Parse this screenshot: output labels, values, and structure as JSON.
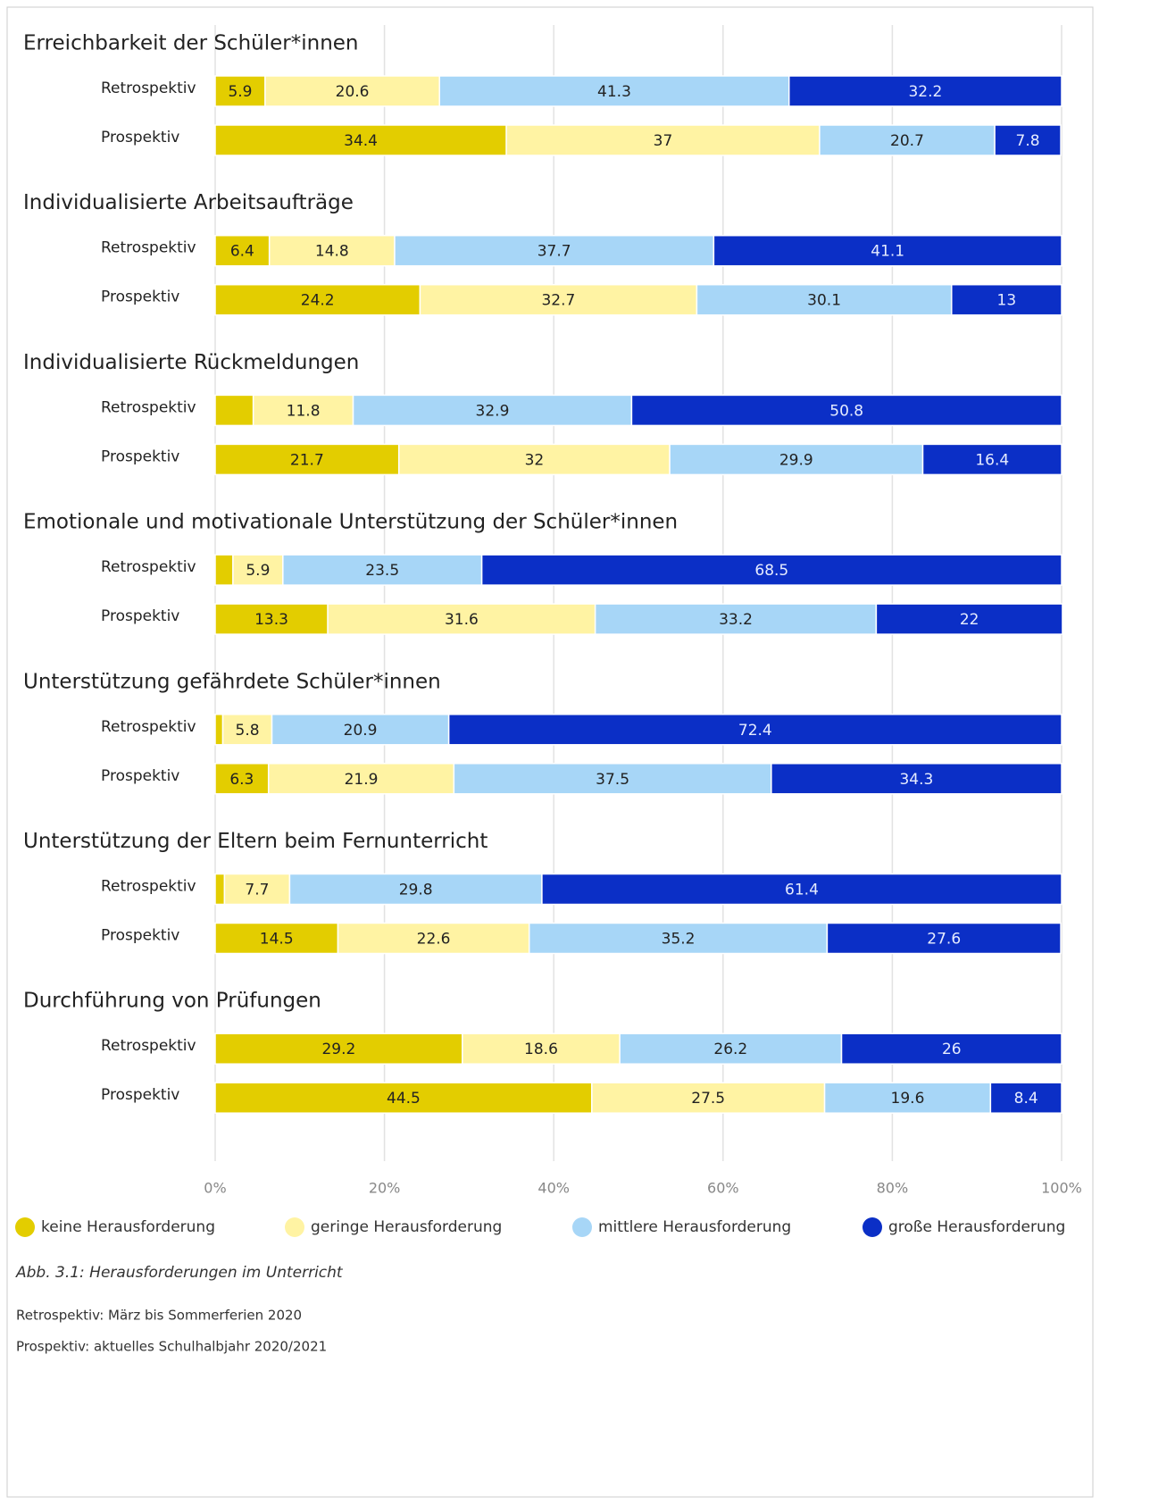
{
  "chart_data": {
    "type": "bar",
    "orientation": "horizontal",
    "stacked": true,
    "groups": [
      "Erreichbarkeit der Schüler*innen",
      "Individualisierte Arbeitsaufträge",
      "Individualisierte Rückmeldungen",
      "Emotionale und motivationale Unterstützung der Schüler*innen",
      "Unterstützung gefährdete Schüler*innen",
      "Unterstützung der Eltern beim Fernunterricht",
      "Durchführung von Prüfungen"
    ],
    "categories": [
      "Retrospektiv",
      "Prospektiv",
      "Retrospektiv",
      "Prospektiv",
      "Retrospektiv",
      "Prospektiv",
      "Retrospektiv",
      "Prospektiv",
      "Retrospektiv",
      "Prospektiv",
      "Retrospektiv",
      "Prospektiv",
      "Retrospektiv",
      "Prospektiv"
    ],
    "series": [
      {
        "name": "keine Herausforderung",
        "color": "#e3cd00",
        "label_color": "#222222",
        "values": [
          5.9,
          34.4,
          6.4,
          24.2,
          4.5,
          21.7,
          2.1,
          13.3,
          0.9,
          6.3,
          1.1,
          14.5,
          29.2,
          44.5
        ],
        "value_labels": [
          "5.9",
          "34.4",
          "6.4",
          "24.2",
          null,
          "21.7",
          null,
          "13.3",
          null,
          "6.3",
          null,
          "14.5",
          "29.2",
          "44.5"
        ]
      },
      {
        "name": "geringe Herausforderung",
        "color": "#fff3a3",
        "label_color": "#222222",
        "values": [
          20.6,
          37,
          14.8,
          32.7,
          11.8,
          32,
          5.9,
          31.6,
          5.8,
          21.9,
          7.7,
          22.6,
          18.6,
          27.5
        ],
        "value_labels": [
          "20.6",
          "37",
          "14.8",
          "32.7",
          "11.8",
          "32",
          "5.9",
          "31.6",
          "5.8",
          "21.9",
          "7.7",
          "22.6",
          "18.6",
          "27.5"
        ]
      },
      {
        "name": "mittlere Herausforderung",
        "color": "#a7d6f7",
        "label_color": "#222222",
        "values": [
          41.3,
          20.7,
          37.7,
          30.1,
          32.9,
          29.9,
          23.5,
          33.2,
          20.9,
          37.5,
          29.8,
          35.2,
          26.2,
          19.6
        ],
        "value_labels": [
          "41.3",
          "20.7",
          "37.7",
          "30.1",
          "32.9",
          "29.9",
          "23.5",
          "33.2",
          "20.9",
          "37.5",
          "29.8",
          "35.2",
          "26.2",
          "19.6"
        ]
      },
      {
        "name": "große Herausforderung",
        "color": "#0b2fc6",
        "label_color": "#e6ecff",
        "values": [
          32.2,
          7.8,
          41.1,
          13,
          50.8,
          16.4,
          68.5,
          22,
          72.4,
          34.3,
          61.4,
          27.6,
          26,
          8.4
        ],
        "value_labels": [
          "32.2",
          "7.8",
          "41.1",
          "13",
          "50.8",
          "16.4",
          "68.5",
          "22",
          "72.4",
          "34.3",
          "61.4",
          "27.6",
          "26",
          "8.4"
        ]
      }
    ],
    "xlim": [
      0,
      100
    ],
    "xticks": [
      {
        "value": 0,
        "label": "0%"
      },
      {
        "value": 20,
        "label": "20%"
      },
      {
        "value": 40,
        "label": "40%"
      },
      {
        "value": 60,
        "label": "60%"
      },
      {
        "value": 80,
        "label": "80%"
      },
      {
        "value": 100,
        "label": "100%"
      }
    ],
    "grid": true,
    "legend": "bottom",
    "caption": "Abb. 3.1: Herausforderungen im Unterricht",
    "notes": [
      "Retrospektiv: März bis Sommerferien 2020",
      "Prospektiv: aktuelles Schulhalbjahr 2020/2021"
    ]
  }
}
